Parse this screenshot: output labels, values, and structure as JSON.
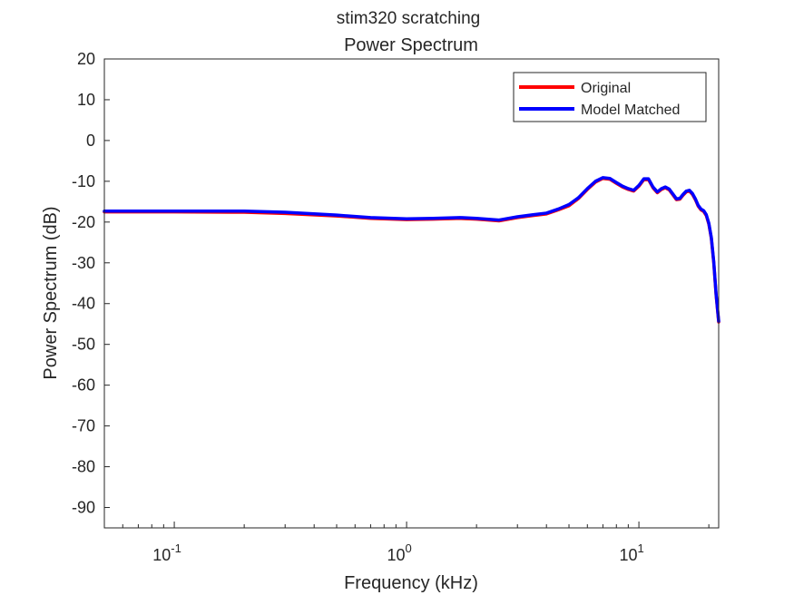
{
  "chart_data": {
    "type": "line",
    "title": "stim320 scratching",
    "subtitle": "Power Spectrum",
    "xlabel": "Frequency (kHz)",
    "ylabel": "Power Spectrum (dB)",
    "x_scale": "log",
    "xlim": [
      0.05,
      22.05
    ],
    "ylim": [
      -95,
      20
    ],
    "x_ticks": [
      {
        "value": 0.1,
        "base": "10",
        "exp": "-1"
      },
      {
        "value": 1,
        "base": "10",
        "exp": "0"
      },
      {
        "value": 10,
        "base": "10",
        "exp": "1"
      }
    ],
    "y_ticks": [
      20,
      10,
      0,
      -10,
      -20,
      -30,
      -40,
      -50,
      -60,
      -70,
      -80,
      -90
    ],
    "grid": false,
    "legend": "top-right",
    "series": [
      {
        "name": "Original",
        "color": "#ff0000",
        "x": [
          0.05,
          0.1,
          0.2,
          0.3,
          0.5,
          0.7,
          1.0,
          1.3,
          1.7,
          2.0,
          2.5,
          3.0,
          3.5,
          4.0,
          4.5,
          5.0,
          5.5,
          6.0,
          6.5,
          7.0,
          7.5,
          8.0,
          8.5,
          9.0,
          9.5,
          10.0,
          10.5,
          11.0,
          11.5,
          12.0,
          12.5,
          13.0,
          13.5,
          14.0,
          14.5,
          15.0,
          15.5,
          16.0,
          16.5,
          17.0,
          17.5,
          18.0,
          18.5,
          19.0,
          19.5,
          20.0,
          20.5,
          21.0,
          21.5,
          22.05
        ],
        "y": [
          -17.5,
          -17.5,
          -17.6,
          -17.9,
          -18.5,
          -19.1,
          -19.4,
          -19.3,
          -19.1,
          -19.3,
          -19.7,
          -18.9,
          -18.4,
          -18.0,
          -17.0,
          -16.0,
          -14.2,
          -12.0,
          -10.2,
          -9.3,
          -9.5,
          -10.5,
          -11.4,
          -12.0,
          -12.4,
          -11.2,
          -9.6,
          -9.6,
          -11.6,
          -12.8,
          -12.0,
          -11.6,
          -12.1,
          -13.3,
          -14.5,
          -14.4,
          -13.4,
          -12.6,
          -12.4,
          -13.2,
          -14.5,
          -16.1,
          -17.0,
          -17.4,
          -18.4,
          -20.5,
          -24.0,
          -30.0,
          -38.0,
          -44.5
        ]
      },
      {
        "name": "Model Matched",
        "color": "#0000ff",
        "x": [
          0.05,
          0.1,
          0.2,
          0.3,
          0.5,
          0.7,
          1.0,
          1.3,
          1.7,
          2.0,
          2.5,
          3.0,
          3.5,
          4.0,
          4.5,
          5.0,
          5.5,
          6.0,
          6.5,
          7.0,
          7.5,
          8.0,
          8.5,
          9.0,
          9.5,
          10.0,
          10.5,
          11.0,
          11.5,
          12.0,
          12.5,
          13.0,
          13.5,
          14.0,
          14.5,
          15.0,
          15.5,
          16.0,
          16.5,
          17.0,
          17.5,
          18.0,
          18.5,
          19.0,
          19.5,
          20.0,
          20.5,
          21.0,
          21.5,
          22.05
        ],
        "y": [
          -17.3,
          -17.3,
          -17.3,
          -17.6,
          -18.3,
          -18.9,
          -19.2,
          -19.1,
          -18.9,
          -19.1,
          -19.5,
          -18.7,
          -18.2,
          -17.8,
          -16.8,
          -15.7,
          -14.0,
          -11.8,
          -10.0,
          -9.1,
          -9.3,
          -10.3,
          -11.2,
          -11.8,
          -12.2,
          -11.0,
          -9.4,
          -9.4,
          -11.4,
          -12.6,
          -11.8,
          -11.4,
          -11.9,
          -13.1,
          -14.3,
          -14.2,
          -13.2,
          -12.4,
          -12.2,
          -13.0,
          -14.3,
          -15.9,
          -16.8,
          -17.2,
          -18.2,
          -20.3,
          -23.8,
          -29.8,
          -37.8,
          -44.3
        ]
      }
    ]
  }
}
